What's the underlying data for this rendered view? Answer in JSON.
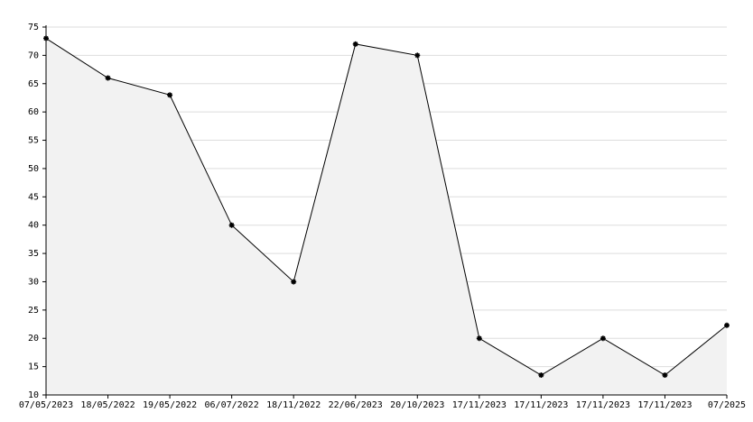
{
  "chart_data": {
    "type": "line",
    "categories": [
      "07/05/2023",
      "18/05/2022",
      "19/05/2022",
      "06/07/2022",
      "18/11/2022",
      "22/06/2023",
      "20/10/2023",
      "17/11/2023",
      "17/11/2023",
      "17/11/2023",
      "17/11/2023",
      "07/2025"
    ],
    "values": [
      73,
      66,
      63,
      40,
      30,
      72,
      70,
      20,
      13.5,
      20,
      13.5,
      22.3
    ],
    "color": "#000000",
    "fill": "#f2f2f2",
    "ylim": [
      10,
      75
    ],
    "yticks": [
      10,
      15,
      20,
      25,
      30,
      35,
      40,
      45,
      50,
      55,
      60,
      65,
      70,
      75
    ],
    "grid": true
  }
}
